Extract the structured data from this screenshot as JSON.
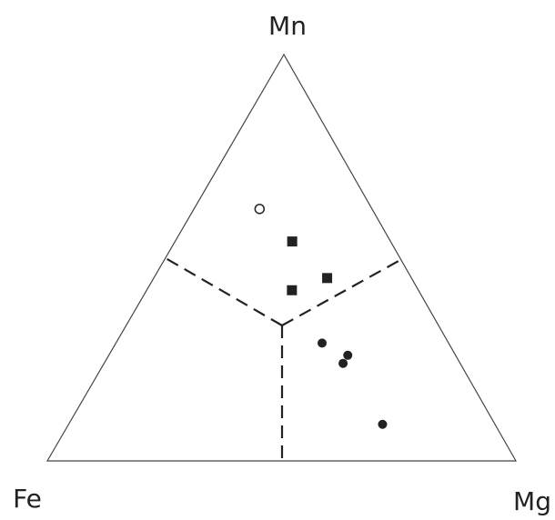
{
  "chart_data": {
    "type": "ternary",
    "labels": {
      "top": "Mn",
      "left": "Fe",
      "right": "Mg"
    },
    "series": [
      {
        "marker": "circle-open",
        "color": "#222",
        "fe": [
          24
        ],
        "mn": [
          62
        ],
        "mg": [
          14
        ]
      },
      {
        "marker": "square",
        "color": "#222",
        "fe": [
          21,
          18,
          27
        ],
        "mn": [
          54,
          45,
          42
        ],
        "mg": [
          25,
          37,
          31
        ]
      },
      {
        "marker": "circle",
        "color": "#222",
        "fe": [
          27,
          23,
          25,
          24
        ],
        "mn": [
          29,
          26,
          24,
          9
        ],
        "mg": [
          44,
          51,
          51,
          67
        ]
      }
    ]
  }
}
